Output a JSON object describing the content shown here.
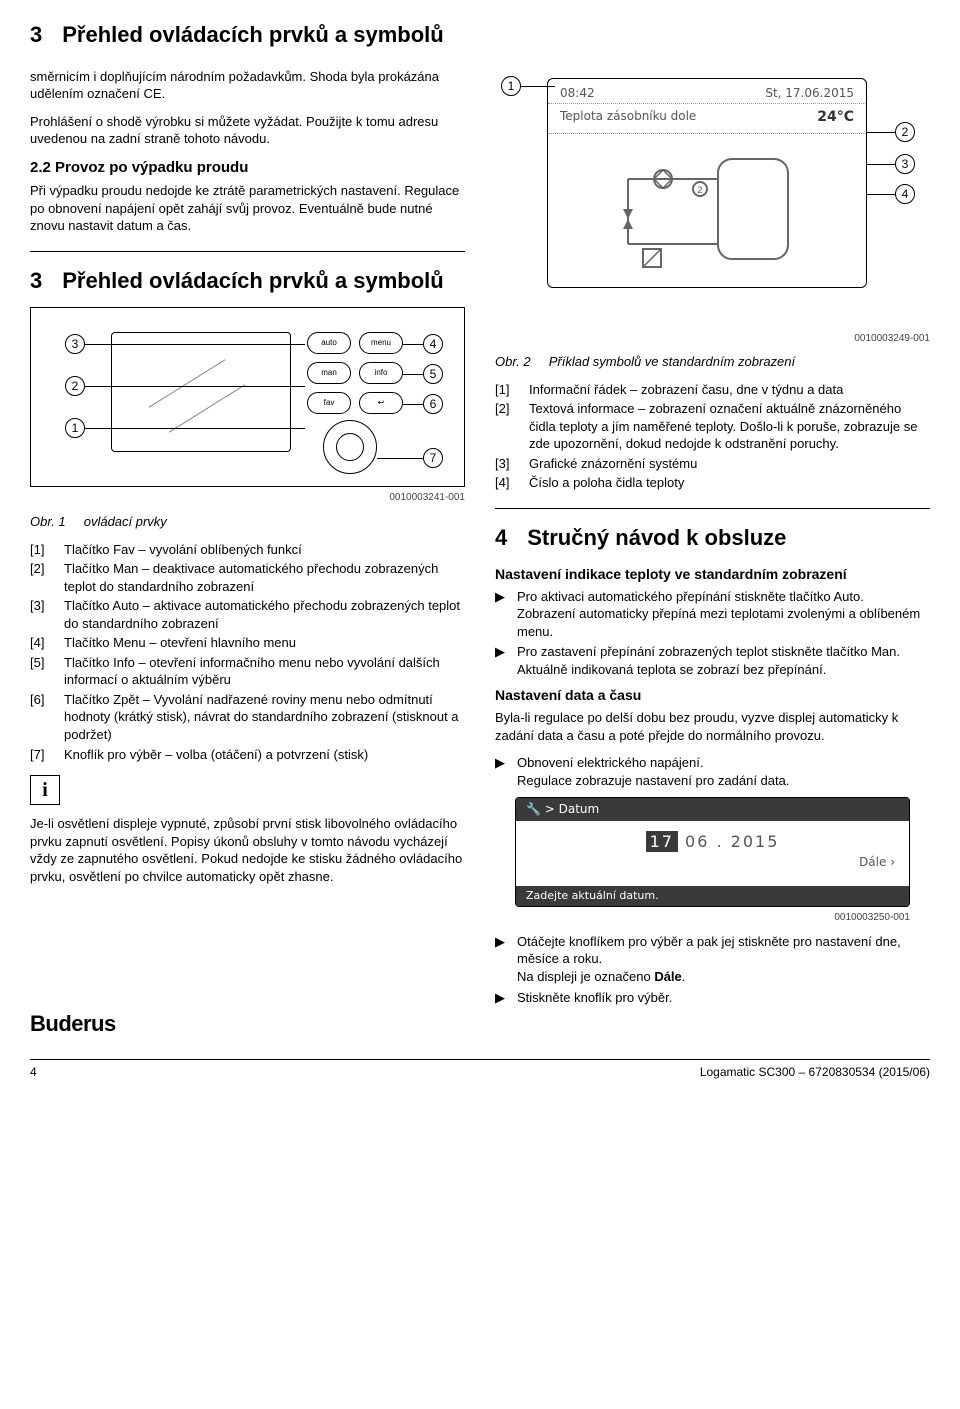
{
  "header": {
    "num": "3",
    "title": "Přehled ovládacích prvků a symbolů"
  },
  "leftTop": {
    "p1": "směrnicím i doplňujícím národním požadavkům. Shoda byla prokázána udělením označení CE.",
    "p2": "Prohlášení o shodě výrobku si můžete vyžádat. Použijte k tomu adresu uvedenou na zadní straně tohoto návodu.",
    "sub": "2.2    Provoz po výpadku proudu",
    "p3": "Při výpadku proudu nedojde ke ztrátě parametrických nastavení. Regulace po obnovení napájení opět zahájí svůj provoz. Eventuálně bude nutné znovu nastavit datum a čas."
  },
  "section3": {
    "num": "3",
    "title": "Přehled ovládacích prvků a symbolů"
  },
  "d1": {
    "auto": "auto",
    "menu": "menu",
    "man": "man",
    "info": "info",
    "fav": "fav",
    "back": "↩",
    "c1": "1",
    "c2": "2",
    "c3": "3",
    "c4": "4",
    "c5": "5",
    "c6": "6",
    "c7": "7"
  },
  "figid1": "0010003241-001",
  "figcap1_lbl": "Obr. 1",
  "figcap1_txt": "ovládací prvky",
  "refs1": [
    {
      "k": "[1]",
      "t": "Tlačítko Fav – vyvolání oblíbených funkcí"
    },
    {
      "k": "[2]",
      "t": "Tlačítko Man – deaktivace automatického přechodu zobrazených teplot do standardního zobrazení"
    },
    {
      "k": "[3]",
      "t": "Tlačítko Auto – aktivace automatického přechodu zobrazených teplot do standardního zobrazení"
    },
    {
      "k": "[4]",
      "t": "Tlačítko Menu – otevření hlavního menu"
    },
    {
      "k": "[5]",
      "t": "Tlačítko Info – otevření informačního menu nebo vyvolání dalších informací o aktuálním výběru"
    },
    {
      "k": "[6]",
      "t": "Tlačítko Zpět – Vyvolání nadřazené roviny menu nebo odmítnutí hodnoty (krátký stisk), návrat do standardního zobrazení (stisknout a podržet)"
    },
    {
      "k": "[7]",
      "t": "Knoflík pro výběr – volba (otáčení) a potvrzení (stisk)"
    }
  ],
  "infoText": "Je-li osvětlení displeje vypnuté, způsobí první stisk libovolného ovládacího prvku zapnutí osvětlení. Popisy úkonů obsluhy v tomto návodu vycházejí vždy ze zapnutého osvětlení. Pokud nedojde ke stisku žádného ovládacího prvku, osvětlení po chvilce automaticky opět zhasne.",
  "d2": {
    "time": "08:42",
    "date": "St, 17.06.2015",
    "line2a": "Teplota zásobníku dole",
    "line2b": "24°C",
    "c1": "1",
    "c2": "2",
    "c3": "3",
    "c4": "4"
  },
  "figid2": "0010003249-001",
  "figcap2_lbl": "Obr. 2",
  "figcap2_txt": "Příklad symbolů ve standardním zobrazení",
  "refs2": [
    {
      "k": "[1]",
      "t": "Informační řádek – zobrazení času, dne v týdnu a data"
    },
    {
      "k": "[2]",
      "t": "Textová informace – zobrazení označení aktuálně znázorněného čidla teploty a jím naměřené teploty. Došlo-li k poruše, zobrazuje se zde upozornění, dokud nedojde k odstranění poruchy."
    },
    {
      "k": "[3]",
      "t": "Grafické znázornění systému"
    },
    {
      "k": "[4]",
      "t": "Číslo a poloha čidla teploty"
    }
  ],
  "section4": {
    "num": "4",
    "title": "Stručný návod k obsluze"
  },
  "s4sub1": "Nastavení indikace teploty ve standardním zobrazení",
  "s4b1": "Pro aktivaci automatického přepínání stiskněte tlačítko Auto.",
  "s4b1b": "Zobrazení automaticky přepíná mezi teplotami zvolenými a oblíbeném menu.",
  "s4b2": "Pro zastavení přepínání zobrazených teplot stiskněte tlačítko Man.",
  "s4b2b": "Aktuálně indikovaná teplota se zobrazí bez přepínání.",
  "s4sub2": "Nastavení data a času",
  "s4p2": "Byla-li regulace po delší dobu bez proudu, vyzve displej automaticky k zadání data a času a poté přejde do normálního provozu.",
  "s4b3": "Obnovení elektrického napájení.",
  "s4b3b": "Regulace zobrazuje nastavení pro zadání data.",
  "d3": {
    "top": "🔧  > Datum",
    "day": "17",
    "rest": " 06 . 2015",
    "dale": "Dále    ›",
    "bottom": "Zadejte aktuální datum."
  },
  "figid3": "0010003250-001",
  "s4b4": "Otáčejte knoflíkem pro výběr a pak jej stiskněte pro nastavení dne, měsíce a roku.",
  "s4b4b": "Na displeji je označeno Dále.",
  "s4b5": "Stiskněte knoflík pro výběr.",
  "footer": {
    "logo": "Buderus",
    "page": "4",
    "doc": "Logamatic SC300 – 6720830534 (2015/06)"
  }
}
